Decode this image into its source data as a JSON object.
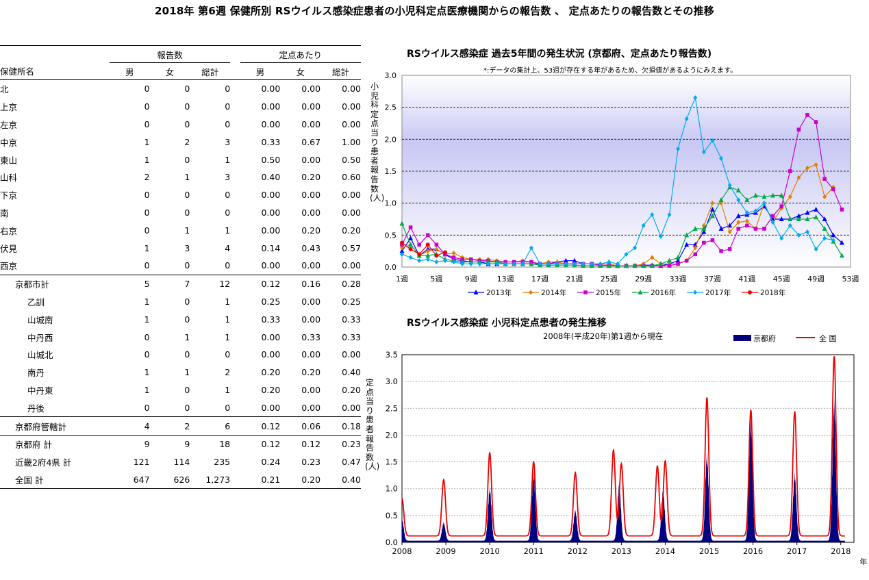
{
  "page_title": "2018年 第6週 保健所別 RSウイルス感染症患者の小児科定点医療機関からの報告数 、 定点あたりの報告数とその推移",
  "table": {
    "group_reports": "報告数",
    "group_rate": "定点あたり",
    "col_name": "保健所名",
    "col_male": "男",
    "col_female": "女",
    "col_total": "総計",
    "rows": [
      {
        "name": "北",
        "m": "0",
        "f": "0",
        "t": "0",
        "rm": "0.00",
        "rf": "0.00",
        "rt": "0.00"
      },
      {
        "name": "上京",
        "m": "0",
        "f": "0",
        "t": "0",
        "rm": "0.00",
        "rf": "0.00",
        "rt": "0.00"
      },
      {
        "name": "左京",
        "m": "0",
        "f": "0",
        "t": "0",
        "rm": "0.00",
        "rf": "0.00",
        "rt": "0.00"
      },
      {
        "name": "中京",
        "m": "1",
        "f": "2",
        "t": "3",
        "rm": "0.33",
        "rf": "0.67",
        "rt": "1.00"
      },
      {
        "name": "東山",
        "m": "1",
        "f": "0",
        "t": "1",
        "rm": "0.50",
        "rf": "0.00",
        "rt": "0.50"
      },
      {
        "name": "山科",
        "m": "2",
        "f": "1",
        "t": "3",
        "rm": "0.40",
        "rf": "0.20",
        "rt": "0.60"
      },
      {
        "name": "下京",
        "m": "0",
        "f": "0",
        "t": "0",
        "rm": "0.00",
        "rf": "0.00",
        "rt": "0.00"
      },
      {
        "name": "南",
        "m": "0",
        "f": "0",
        "t": "0",
        "rm": "0.00",
        "rf": "0.00",
        "rt": "0.00"
      },
      {
        "name": "右京",
        "m": "0",
        "f": "1",
        "t": "1",
        "rm": "0.00",
        "rf": "0.20",
        "rt": "0.20"
      },
      {
        "name": "伏見",
        "m": "1",
        "f": "3",
        "t": "4",
        "rm": "0.14",
        "rf": "0.43",
        "rt": "0.57"
      },
      {
        "name": "西京",
        "m": "0",
        "f": "0",
        "t": "0",
        "rm": "0.00",
        "rf": "0.00",
        "rt": "0.00"
      },
      {
        "name": "京都市計",
        "m": "5",
        "f": "7",
        "t": "12",
        "rm": "0.12",
        "rf": "0.16",
        "rt": "0.28"
      },
      {
        "name": "乙訓",
        "m": "1",
        "f": "0",
        "t": "1",
        "rm": "0.25",
        "rf": "0.00",
        "rt": "0.25"
      },
      {
        "name": "山城南",
        "m": "1",
        "f": "0",
        "t": "1",
        "rm": "0.33",
        "rf": "0.00",
        "rt": "0.33"
      },
      {
        "name": "中丹西",
        "m": "0",
        "f": "1",
        "t": "1",
        "rm": "0.00",
        "rf": "0.33",
        "rt": "0.33"
      },
      {
        "name": "山城北",
        "m": "0",
        "f": "0",
        "t": "0",
        "rm": "0.00",
        "rf": "0.00",
        "rt": "0.00"
      },
      {
        "name": "南丹",
        "m": "1",
        "f": "1",
        "t": "2",
        "rm": "0.20",
        "rf": "0.20",
        "rt": "0.40"
      },
      {
        "name": "中丹東",
        "m": "1",
        "f": "0",
        "t": "1",
        "rm": "0.20",
        "rf": "0.00",
        "rt": "0.20"
      },
      {
        "name": "丹後",
        "m": "0",
        "f": "0",
        "t": "0",
        "rm": "0.00",
        "rf": "0.00",
        "rt": "0.00"
      },
      {
        "name": "京都府管轄計",
        "m": "4",
        "f": "2",
        "t": "6",
        "rm": "0.12",
        "rf": "0.06",
        "rt": "0.18"
      },
      {
        "name": "京都府 計",
        "m": "9",
        "f": "9",
        "t": "18",
        "rm": "0.12",
        "rf": "0.12",
        "rt": "0.23"
      },
      {
        "name": "近畿2府4県 計",
        "m": "121",
        "f": "114",
        "t": "235",
        "rm": "0.24",
        "rf": "0.23",
        "rt": "0.47"
      },
      {
        "name": "全国 計",
        "m": "647",
        "f": "626",
        "t": "1,273",
        "rm": "0.21",
        "rf": "0.20",
        "rt": "0.40"
      }
    ]
  },
  "chart_data": [
    {
      "type": "line",
      "title": "RSウイルス感染症 過去5年間の発生状況 (京都府、定点あたり報告数)",
      "note": "*:データの集計上、53週が存在する年があるため、欠損値があるようにみえます。",
      "ylabel": "小児科定点当り患者報告数(人)",
      "ylim": [
        0,
        3.0
      ],
      "yticks": [
        "0.0",
        "0.5",
        "1.0",
        "1.5",
        "2.0",
        "2.5",
        "3.0"
      ],
      "xlim": [
        1,
        53
      ],
      "xticks": [
        1,
        5,
        9,
        13,
        17,
        21,
        25,
        29,
        33,
        37,
        41,
        45,
        49,
        53
      ],
      "xtick_suffix": "週",
      "legend_position": "bottom",
      "series": [
        {
          "name": "2013年",
          "color": "#0000ff",
          "marker": "triangle",
          "values": [
            0.25,
            0.45,
            0.18,
            0.28,
            0.28,
            0.2,
            0.12,
            0.1,
            0.08,
            0.08,
            0.05,
            0.05,
            0.05,
            0.05,
            0.05,
            0.05,
            0.05,
            0.05,
            0.08,
            0.1,
            0.1,
            0.05,
            0.05,
            0.03,
            0.02,
            0.02,
            0.02,
            0.02,
            0.03,
            0.03,
            0.02,
            0.05,
            0.1,
            0.35,
            0.35,
            0.55,
            0.9,
            0.6,
            0.65,
            0.8,
            0.82,
            0.85,
            0.95,
            0.75,
            0.75,
            0.75,
            0.8,
            0.85,
            0.9,
            0.75,
            0.5,
            0.38,
            null
          ]
        },
        {
          "name": "2014年",
          "color": "#e08000",
          "marker": "diamond",
          "values": [
            0.3,
            0.35,
            0.18,
            0.25,
            0.28,
            0.2,
            0.22,
            0.15,
            0.12,
            0.12,
            0.12,
            0.1,
            0.08,
            0.08,
            0.1,
            0.08,
            0.05,
            0.08,
            0.08,
            0.05,
            0.05,
            0.05,
            0.05,
            0.05,
            0.05,
            0.02,
            0.02,
            0.02,
            0.05,
            0.15,
            0.05,
            0.05,
            0.05,
            0.1,
            0.3,
            0.65,
            1.0,
            1.0,
            0.55,
            0.7,
            0.72,
            0.6,
            1.0,
            0.7,
            0.92,
            1.1,
            1.4,
            1.55,
            1.6,
            1.1,
            1.25,
            null,
            null
          ]
        },
        {
          "name": "2015年",
          "color": "#cc00cc",
          "marker": "square",
          "values": [
            0.35,
            0.62,
            0.35,
            0.5,
            0.35,
            0.2,
            0.15,
            0.12,
            0.12,
            0.1,
            0.1,
            0.08,
            0.08,
            0.08,
            0.08,
            0.08,
            0.05,
            0.05,
            0.05,
            0.05,
            0.05,
            0.05,
            0.05,
            0.03,
            0.03,
            0.02,
            0.02,
            0.02,
            0.02,
            0.02,
            0.02,
            0.02,
            0.05,
            0.1,
            0.2,
            0.38,
            0.42,
            0.25,
            0.28,
            0.6,
            0.65,
            0.6,
            0.6,
            0.8,
            0.95,
            1.5,
            2.15,
            2.38,
            2.27,
            1.38,
            1.22,
            0.9,
            null
          ]
        },
        {
          "name": "2016年",
          "color": "#00aa44",
          "marker": "triangle",
          "values": [
            0.68,
            0.35,
            0.18,
            0.18,
            0.2,
            0.12,
            0.1,
            0.08,
            0.08,
            0.08,
            0.08,
            0.08,
            0.05,
            0.05,
            0.05,
            0.05,
            0.03,
            0.03,
            0.03,
            0.03,
            0.03,
            0.02,
            0.02,
            0.02,
            0.02,
            0.02,
            0.02,
            0.02,
            0.02,
            0.02,
            0.05,
            0.1,
            0.15,
            0.5,
            0.6,
            0.6,
            0.8,
            1.05,
            1.25,
            1.2,
            1.05,
            1.12,
            1.1,
            1.12,
            1.12,
            0.75,
            0.75,
            0.75,
            0.78,
            0.6,
            0.4,
            0.18,
            null
          ]
        },
        {
          "name": "2017年",
          "color": "#00aaee",
          "marker": "diamond",
          "values": [
            0.2,
            0.15,
            0.1,
            0.12,
            0.08,
            0.1,
            0.08,
            0.05,
            0.05,
            0.05,
            0.05,
            0.05,
            0.05,
            0.05,
            0.05,
            0.3,
            0.05,
            0.05,
            0.05,
            0.05,
            0.05,
            0.05,
            0.05,
            0.05,
            0.08,
            0.05,
            0.2,
            0.3,
            0.65,
            0.82,
            0.48,
            0.82,
            1.85,
            2.32,
            2.65,
            1.8,
            1.98,
            1.7,
            1.28,
            1.05,
            0.85,
            0.88,
            1.0,
            0.7,
            0.45,
            0.65,
            0.5,
            0.55,
            0.28,
            0.45,
            0.42,
            null,
            null
          ]
        },
        {
          "name": "2018年",
          "color": "#ee0000",
          "marker": "circle",
          "values": [
            0.38,
            0.28,
            0.2,
            0.35,
            0.18,
            0.23,
            null,
            null,
            null,
            null,
            null,
            null,
            null,
            null,
            null,
            null,
            null,
            null,
            null,
            null,
            null,
            null,
            null,
            null,
            null,
            null,
            null,
            null,
            null,
            null,
            null,
            null,
            null,
            null,
            null,
            null,
            null,
            null,
            null,
            null,
            null,
            null,
            null,
            null,
            null,
            null,
            null,
            null,
            null,
            null,
            null,
            null,
            null
          ]
        }
      ]
    },
    {
      "type": "area",
      "title": "RSウイルス感染症 小児科定点患者の発生推移",
      "subtitle": "2008年(平成20年)第1週から現在",
      "ylabel": "定点当り患者報告数(人)",
      "ylim": [
        0,
        3.5
      ],
      "yticks": [
        "0.0",
        "0.5",
        "1.0",
        "1.5",
        "2.0",
        "2.5",
        "3.0",
        "3.5"
      ],
      "xticks": [
        "2008",
        "2009",
        "2010",
        "2011",
        "2012",
        "2013",
        "2014",
        "2015",
        "2016",
        "2017",
        "2018"
      ],
      "x_unit_label": "年",
      "legend_position": "top-right",
      "series": [
        {
          "name": "京都府",
          "style": "filled-area",
          "color": "#000080",
          "peaks": [
            [
              2008.0,
              0.4
            ],
            [
              2008.95,
              0.33
            ],
            [
              2010.0,
              0.95
            ],
            [
              2011.0,
              1.22
            ],
            [
              2011.95,
              0.55
            ],
            [
              2012.95,
              1.02
            ],
            [
              2013.95,
              0.92
            ],
            [
              2014.95,
              1.55
            ],
            [
              2015.95,
              2.15
            ],
            [
              2016.95,
              1.2
            ],
            [
              2017.85,
              2.5
            ]
          ]
        },
        {
          "name": "全 国",
          "style": "line",
          "color": "#ee0000",
          "peaks": [
            [
              2008.0,
              0.7
            ],
            [
              2008.95,
              1.05
            ],
            [
              2010.0,
              1.55
            ],
            [
              2011.0,
              1.38
            ],
            [
              2011.95,
              1.18
            ],
            [
              2012.82,
              1.6
            ],
            [
              2013.0,
              1.35
            ],
            [
              2013.82,
              1.3
            ],
            [
              2014.0,
              1.4
            ],
            [
              2014.95,
              2.58
            ],
            [
              2015.95,
              2.35
            ],
            [
              2016.95,
              2.32
            ],
            [
              2017.85,
              3.35
            ]
          ]
        }
      ]
    }
  ]
}
